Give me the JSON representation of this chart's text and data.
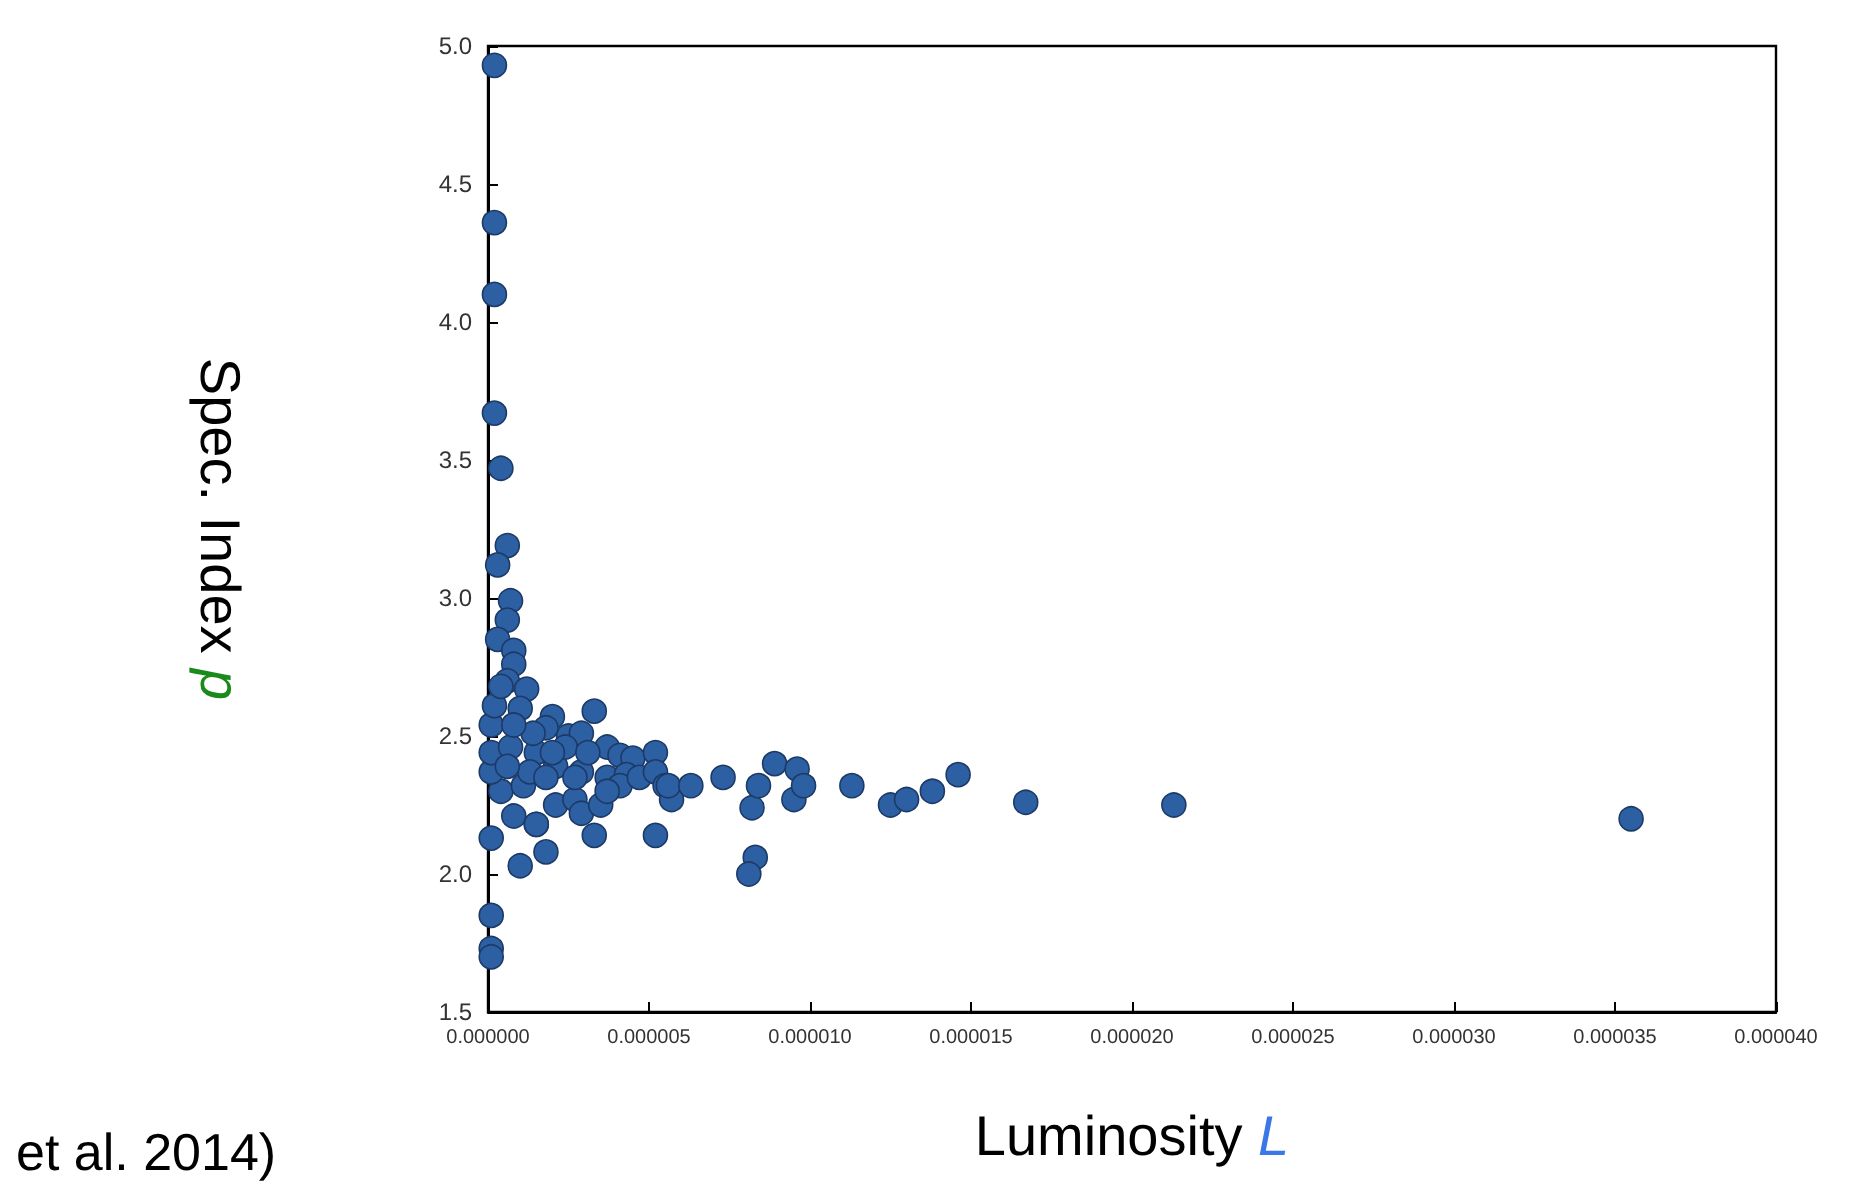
{
  "chart_data": {
    "type": "scatter",
    "xlabel": "Luminosity L",
    "ylabel": "Spec. Index p",
    "annotations": [
      "et al. 2014)"
    ],
    "marker": "circle",
    "grid": false,
    "xlim": [
      0,
      4e-05
    ],
    "ylim": [
      1.5,
      5.0
    ],
    "xticks": [
      {
        "value": 0,
        "label": "0.000000"
      },
      {
        "value": 5e-06,
        "label": "0.000005"
      },
      {
        "value": 1e-05,
        "label": "0.000010"
      },
      {
        "value": 1.5e-05,
        "label": "0.000015"
      },
      {
        "value": 2e-05,
        "label": "0.000020"
      },
      {
        "value": 2.5e-05,
        "label": "0.000025"
      },
      {
        "value": 3e-05,
        "label": "0.000030"
      },
      {
        "value": 3.5e-05,
        "label": "0.000035"
      },
      {
        "value": 4e-05,
        "label": "0.000040"
      }
    ],
    "yticks": [
      {
        "value": 1.5,
        "label": "1.5"
      },
      {
        "value": 2.0,
        "label": "2.0"
      },
      {
        "value": 2.5,
        "label": "2.5"
      },
      {
        "value": 3.0,
        "label": "3.0"
      },
      {
        "value": 3.5,
        "label": "3.5"
      },
      {
        "value": 4.0,
        "label": "4.0"
      },
      {
        "value": 4.5,
        "label": "4.5"
      },
      {
        "value": 5.0,
        "label": "5.0"
      }
    ],
    "series": [
      {
        "color": "#2d5fa3",
        "x": [
          2e-07,
          2e-07,
          2e-07,
          2e-07,
          4e-07,
          6e-07,
          3e-07,
          7e-07,
          6e-07,
          3e-07,
          8e-07,
          8e-07,
          6e-07,
          1.2e-06,
          1e-06,
          2e-06,
          3.3e-06,
          2.5e-06,
          2.9e-06,
          3.7e-06,
          4.1e-06,
          4.5e-06,
          5.2e-06,
          1.5e-06,
          2.1e-06,
          2.9e-06,
          3.7e-06,
          4.3e-06,
          2.1e-06,
          2.7e-06,
          2.9e-06,
          3.5e-06,
          8e-07,
          1.5e-06,
          4e-07,
          1.1e-06,
          1e-07,
          1e-07,
          1e-07,
          2e-07,
          4e-07,
          1.8e-06,
          2.4e-06,
          1.3e-06,
          1.8e-06,
          1.4e-06,
          7e-07,
          8e-07,
          6e-07,
          2e-06,
          3.1e-06,
          2.7e-06,
          4.1e-06,
          4.7e-06,
          3.7e-06,
          1e-07,
          1e-07,
          1e-07,
          1e-07,
          1e-06,
          1.8e-06,
          1.5e-06,
          3.3e-06,
          5.2e-06,
          5.2e-06,
          5.5e-06,
          5.7e-06,
          5.6e-06,
          6.3e-06,
          7.3e-06,
          8.2e-06,
          8.3e-06,
          8.1e-06,
          8.4e-06,
          8.9e-06,
          9.6e-06,
          9.5e-06,
          9.8e-06,
          1.13e-05,
          1.25e-05,
          1.3e-05,
          1.38e-05,
          1.46e-05,
          1.67e-05,
          2.13e-05,
          3.55e-05
        ],
        "values": [
          4.93,
          4.36,
          4.1,
          3.67,
          3.47,
          3.19,
          3.12,
          2.99,
          2.92,
          2.85,
          2.81,
          2.76,
          2.7,
          2.67,
          2.6,
          2.57,
          2.59,
          2.5,
          2.51,
          2.46,
          2.43,
          2.42,
          2.44,
          2.44,
          2.39,
          2.37,
          2.35,
          2.36,
          2.25,
          2.27,
          2.22,
          2.25,
          2.21,
          2.18,
          2.3,
          2.32,
          2.37,
          2.44,
          2.54,
          2.61,
          2.68,
          2.53,
          2.46,
          2.37,
          2.35,
          2.51,
          2.46,
          2.54,
          2.39,
          2.44,
          2.44,
          2.35,
          2.32,
          2.35,
          2.3,
          2.13,
          1.85,
          1.73,
          1.7,
          2.03,
          2.08,
          2.18,
          2.14,
          2.14,
          2.37,
          2.32,
          2.27,
          2.32,
          2.32,
          2.35,
          2.24,
          2.06,
          2.0,
          2.32,
          2.4,
          2.38,
          2.27,
          2.32,
          2.32,
          2.25,
          2.27,
          2.3,
          2.36,
          2.26,
          2.25,
          2.2
        ]
      }
    ]
  }
}
